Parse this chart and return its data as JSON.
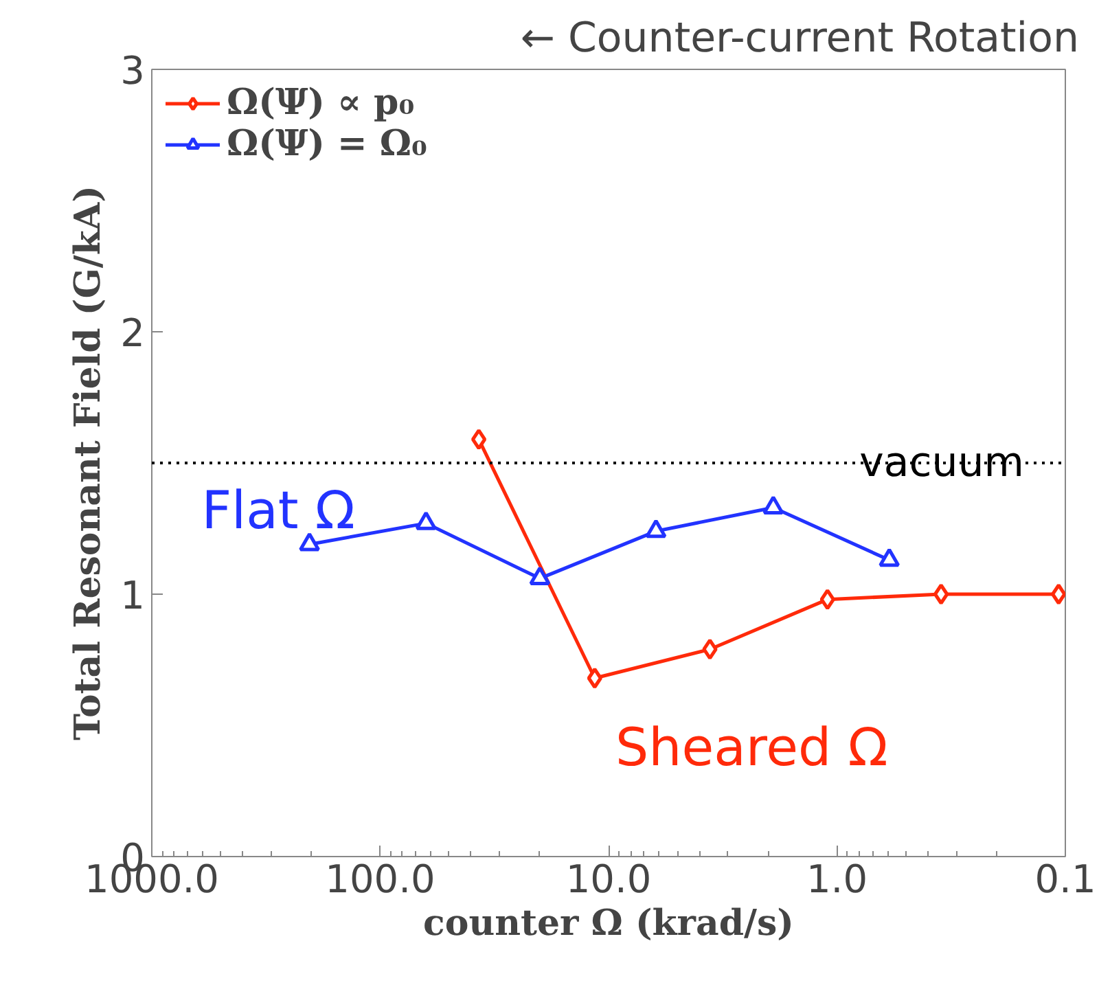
{
  "chart_data": {
    "type": "line",
    "title": "← Counter-current Rotation",
    "xlabel": "counter Ω (krad/s)",
    "ylabel": "Total Resonant Field (G/kA)",
    "log": "x",
    "xlim": [
      1000,
      0.1
    ],
    "xticks": [
      {
        "value": 1000,
        "label": "1000.0"
      },
      {
        "value": 100,
        "label": "100.0"
      },
      {
        "value": 10,
        "label": "10.0"
      },
      {
        "value": 1,
        "label": "1.0"
      },
      {
        "value": 0.1,
        "label": "0.1"
      }
    ],
    "ylim": [
      0,
      3
    ],
    "yticks": [
      0,
      1,
      2,
      3
    ],
    "grid": false,
    "legend": "top left",
    "line_style": "solid",
    "series": [
      {
        "name": "Ω(Ψ) ∝ p₀",
        "color": "#ff2a0a",
        "marker": "diamond",
        "x": [
          37,
          11.5,
          3.6,
          1.1,
          0.35,
          0.107
        ],
        "values": [
          1.59,
          0.68,
          0.79,
          0.98,
          1.0,
          1.0
        ]
      },
      {
        "name": "Ω(Ψ) = Ω₀",
        "color": "#2233ff",
        "marker": "triangle",
        "x": [
          204,
          63,
          20,
          6.2,
          1.9,
          0.59
        ],
        "values": [
          1.19,
          1.27,
          1.06,
          1.24,
          1.33,
          1.13
        ]
      }
    ],
    "ref_lines": [
      {
        "axis": "y",
        "value": 1.5,
        "label": "vacuum",
        "color": "#000000",
        "line_style": "dotted"
      }
    ],
    "annotations": [
      "Flat Ω",
      "Sheared Ω"
    ]
  }
}
